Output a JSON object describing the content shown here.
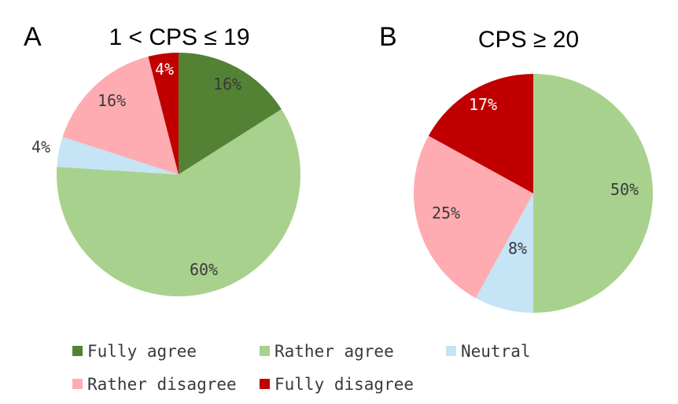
{
  "chart_data": [
    {
      "type": "pie",
      "panel": "A",
      "title": "1 < CPS ≤ 19",
      "slices": [
        {
          "category": "Fully agree",
          "value": 16,
          "label": "16%"
        },
        {
          "category": "Rather agree",
          "value": 60,
          "label": "60%"
        },
        {
          "category": "Neutral",
          "value": 4,
          "label": "4%"
        },
        {
          "category": "Rather disagree",
          "value": 16,
          "label": "16%"
        },
        {
          "category": "Fully disagree",
          "value": 4,
          "label": "4%"
        }
      ]
    },
    {
      "type": "pie",
      "panel": "B",
      "title": "CPS ≥ 20",
      "slices": [
        {
          "category": "Rather agree",
          "value": 50,
          "label": "50%"
        },
        {
          "category": "Neutral",
          "value": 8,
          "label": "8%"
        },
        {
          "category": "Rather disagree",
          "value": 25,
          "label": "25%"
        },
        {
          "category": "Fully disagree",
          "value": 17,
          "label": "17%"
        }
      ]
    }
  ],
  "legend": [
    {
      "label": "Fully agree",
      "color": "#548235"
    },
    {
      "label": "Rather agree",
      "color": "#a9d18e"
    },
    {
      "label": "Neutral",
      "color": "#c5e4f5"
    },
    {
      "label": "Rather disagree",
      "color": "#ffabb2"
    },
    {
      "label": "Fully disagree",
      "color": "#c00000"
    }
  ]
}
